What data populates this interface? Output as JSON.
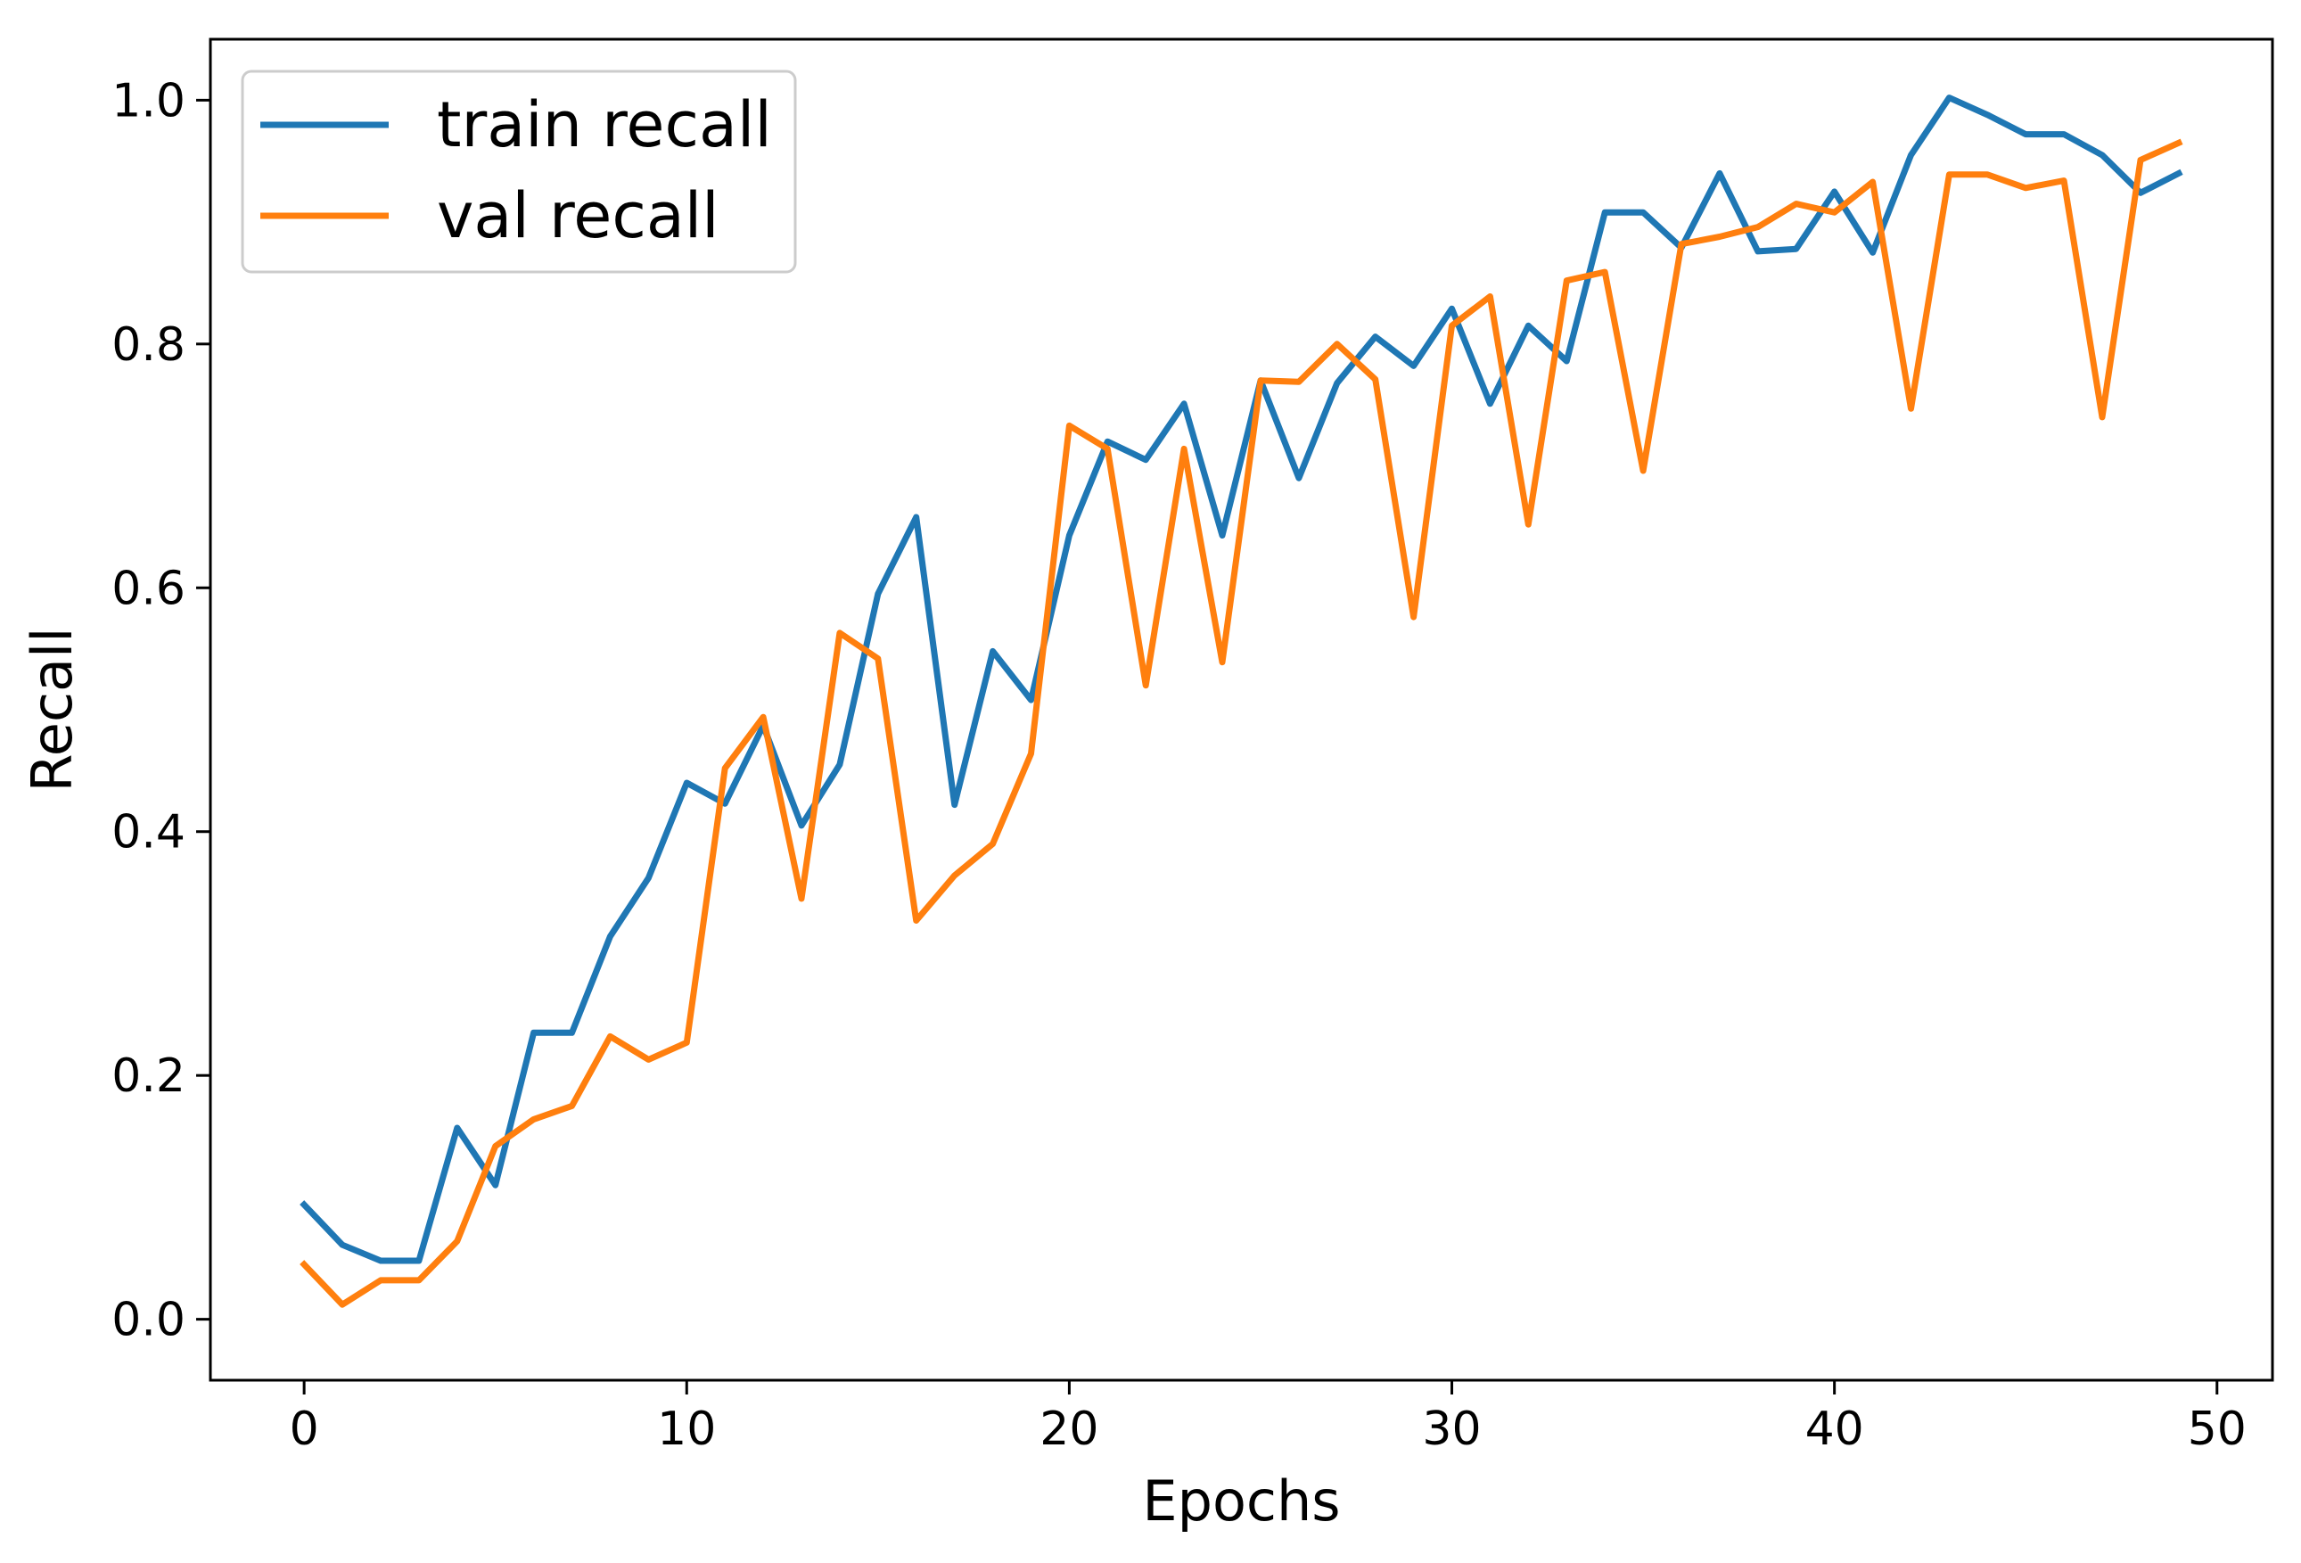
{
  "chart_data": {
    "type": "line",
    "title": "",
    "xlabel": "Epochs",
    "ylabel": "Recall",
    "xlim": [
      -2.45,
      51.45
    ],
    "ylim": [
      -0.05,
      1.05
    ],
    "xticks": [
      0,
      10,
      20,
      30,
      40,
      50
    ],
    "xtick_labels": [
      "0",
      "10",
      "20",
      "30",
      "40",
      "50"
    ],
    "yticks": [
      0.0,
      0.2,
      0.4,
      0.6,
      0.8,
      1.0
    ],
    "ytick_labels": [
      "0.0",
      "0.2",
      "0.4",
      "0.6",
      "0.8",
      "1.0"
    ],
    "grid": false,
    "legend_position": "top-left",
    "x": [
      0,
      1,
      2,
      3,
      4,
      5,
      6,
      7,
      8,
      9,
      10,
      11,
      12,
      13,
      14,
      15,
      16,
      17,
      18,
      19,
      20,
      21,
      22,
      23,
      24,
      25,
      26,
      27,
      28,
      29,
      30,
      31,
      32,
      33,
      34,
      35,
      36,
      37,
      38,
      39,
      40,
      41,
      42,
      43,
      44,
      45,
      46,
      47,
      48,
      49
    ],
    "series": [
      {
        "name": "train recall",
        "color": "#1f77b4",
        "values": [
          0.094,
          0.061,
          0.048,
          0.048,
          0.157,
          0.11,
          0.235,
          0.235,
          0.314,
          0.362,
          0.44,
          0.423,
          0.487,
          0.405,
          0.455,
          0.595,
          0.658,
          0.422,
          0.548,
          0.508,
          0.643,
          0.72,
          0.705,
          0.751,
          0.643,
          0.77,
          0.69,
          0.768,
          0.806,
          0.782,
          0.829,
          0.751,
          0.815,
          0.786,
          0.908,
          0.908,
          0.879,
          0.94,
          0.876,
          0.878,
          0.925,
          0.875,
          0.955,
          1.002,
          0.988,
          0.972,
          0.972,
          0.955,
          0.924,
          0.94
        ]
      },
      {
        "name": "val recall",
        "color": "#ff7f0e",
        "values": [
          0.045,
          0.012,
          0.032,
          0.032,
          0.064,
          0.142,
          0.164,
          0.175,
          0.232,
          0.213,
          0.227,
          0.452,
          0.494,
          0.345,
          0.563,
          0.542,
          0.327,
          0.364,
          0.39,
          0.464,
          0.733,
          0.714,
          0.52,
          0.714,
          0.539,
          0.77,
          0.769,
          0.8,
          0.771,
          0.576,
          0.815,
          0.839,
          0.652,
          0.852,
          0.859,
          0.696,
          0.882,
          0.888,
          0.896,
          0.915,
          0.908,
          0.933,
          0.747,
          0.939,
          0.939,
          0.928,
          0.934,
          0.74,
          0.951,
          0.965
        ]
      }
    ]
  }
}
